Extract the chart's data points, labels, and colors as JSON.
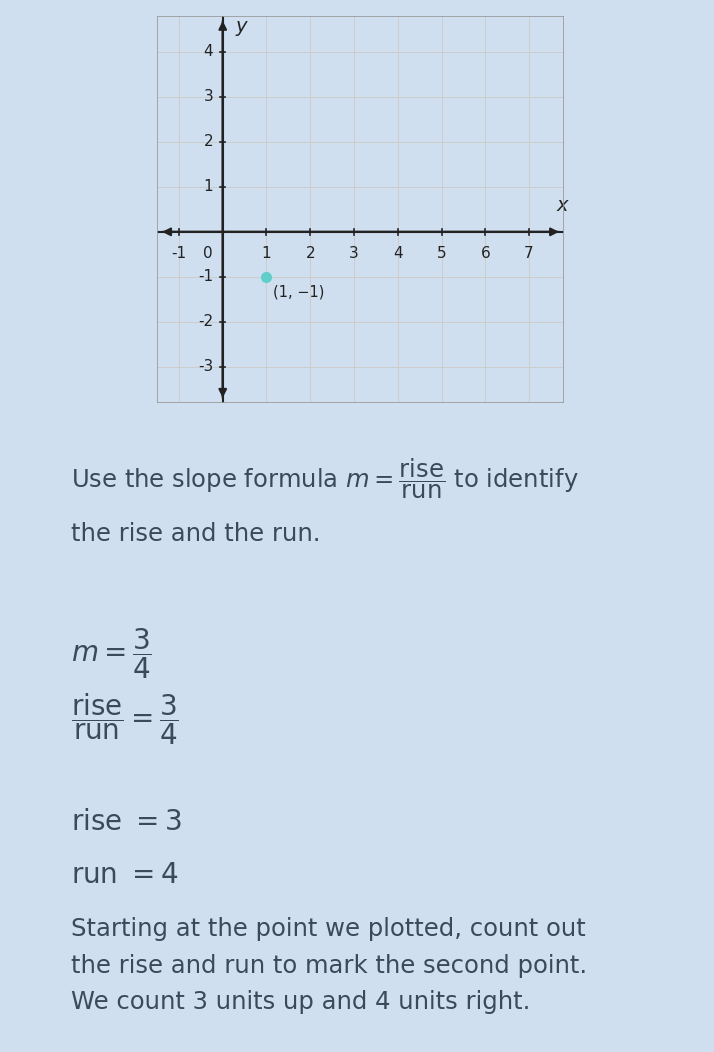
{
  "background_color": "#cfdff0",
  "graph_bg_color": "#ffffff",
  "graph_border_color": "#aaaaaa",
  "graph_xlim": [
    -1.5,
    7.8
  ],
  "graph_ylim": [
    -3.8,
    4.8
  ],
  "x_ticks": [
    -1,
    0,
    1,
    2,
    3,
    4,
    5,
    6,
    7
  ],
  "y_ticks": [
    -3,
    -2,
    -1,
    0,
    1,
    2,
    3,
    4
  ],
  "x_grid": [
    -1,
    0,
    1,
    2,
    3,
    4,
    5,
    6,
    7
  ],
  "y_grid": [
    -3,
    -2,
    -1,
    0,
    1,
    2,
    3,
    4
  ],
  "point_x": 1,
  "point_y": -1,
  "point_label": "(1, −1)",
  "point_color": "#5ecfca",
  "grid_color": "#cccccc",
  "axis_color": "#222222",
  "text_color": "#3a4a5c",
  "tick_fontsize": 11,
  "axis_label_fontsize": 14,
  "text_fontsize": 17.5,
  "eq_fontsize": 17
}
